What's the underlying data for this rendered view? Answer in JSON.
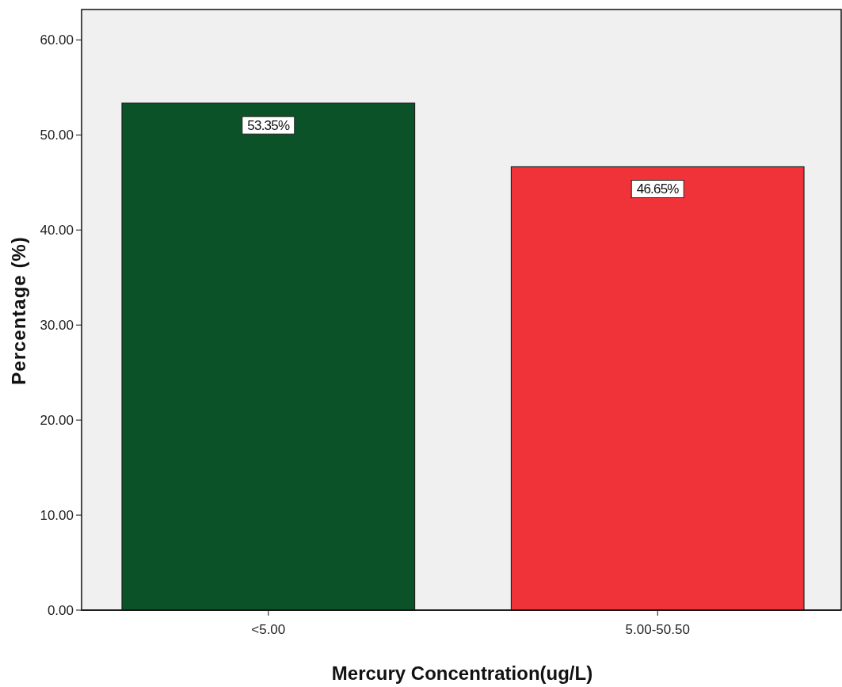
{
  "chart_data": {
    "type": "bar",
    "xlabel": "Mercury Concentration(ug/L)",
    "ylabel": "Percentage (%)",
    "categories": [
      "<5.00",
      "5.00-50.50"
    ],
    "values": [
      53.35,
      46.65
    ],
    "colors": [
      "#0b5229",
      "#ef3339"
    ],
    "value_labels": [
      "53.35%",
      "46.65%"
    ],
    "ylim": [
      0,
      63.2
    ],
    "yticks": [
      {
        "value": 0,
        "label": "0.00"
      },
      {
        "value": 10,
        "label": "10.00"
      },
      {
        "value": 20,
        "label": "20.00"
      },
      {
        "value": 30,
        "label": "30.00"
      },
      {
        "value": 40,
        "label": "40.00"
      },
      {
        "value": 50,
        "label": "50.00"
      },
      {
        "value": 60,
        "label": "60.00"
      }
    ],
    "grid": false
  }
}
